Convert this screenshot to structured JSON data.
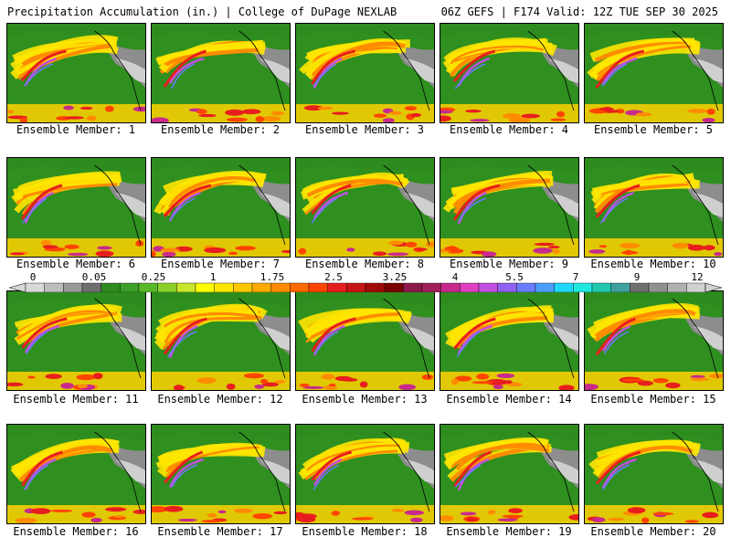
{
  "header": {
    "title_left": "Precipitation Accumulation (in.) | College of DuPage NEXLAB",
    "title_right": "06Z GEFS | F174 Valid: 12Z TUE SEP 30 2025"
  },
  "members": [
    "Ensemble Member: 1",
    "Ensemble Member: 2",
    "Ensemble Member: 3",
    "Ensemble Member: 4",
    "Ensemble Member: 5",
    "Ensemble Member: 6",
    "Ensemble Member: 7",
    "Ensemble Member: 8",
    "Ensemble Member: 9",
    "Ensemble Member: 10",
    "Ensemble Member: 11",
    "Ensemble Member: 12",
    "Ensemble Member: 13",
    "Ensemble Member: 14",
    "Ensemble Member: 15",
    "Ensemble Member: 16",
    "Ensemble Member: 17",
    "Ensemble Member: 18",
    "Ensemble Member: 19",
    "Ensemble Member: 20"
  ],
  "colorbar": {
    "labels": [
      "0",
      "0.05",
      "0.25",
      "1",
      "1.75",
      "2.5",
      "3.25",
      "4",
      "5.5",
      "7",
      "9",
      "12"
    ],
    "colors": [
      "#d8d8d8",
      "#bdbdbd",
      "#9a9a9a",
      "#6f6f6f",
      "#2e8b1e",
      "#3aa02a",
      "#59b829",
      "#8bcf2a",
      "#c9e62a",
      "#ffff00",
      "#ffe600",
      "#ffc800",
      "#ffaa00",
      "#ff8c00",
      "#ff6a00",
      "#ff4500",
      "#e81e1e",
      "#c81414",
      "#a00a0a",
      "#780000",
      "#8b1a4a",
      "#a0205a",
      "#c82a8c",
      "#e040c0",
      "#c050e0",
      "#9060f0",
      "#6a7cff",
      "#4aa0ff",
      "#20d8ff",
      "#20e8e0",
      "#20c8b0",
      "#40a0a0",
      "#707070",
      "#909090",
      "#b0b0b0",
      "#d0d0d0"
    ]
  }
}
